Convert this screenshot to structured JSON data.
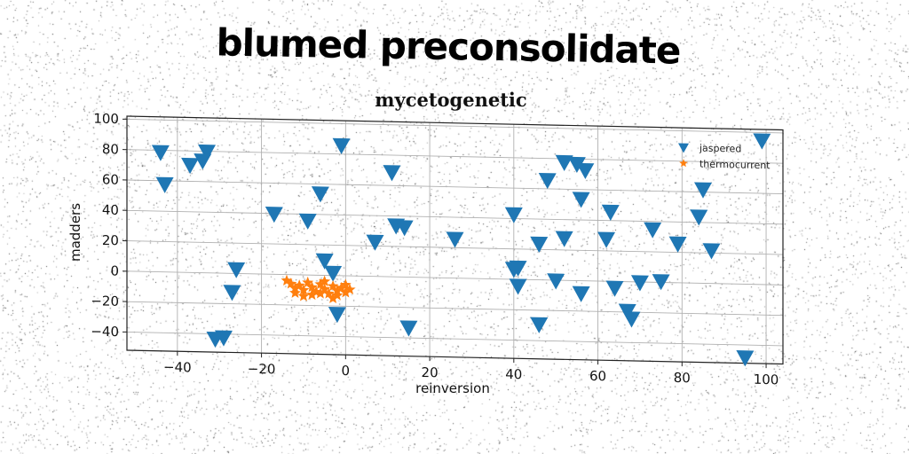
{
  "suptitle": "blumed preconsolidate",
  "chart_data": {
    "type": "scatter",
    "title": "mycetogenetic",
    "xlabel": "reinversion",
    "ylabel": "madders",
    "xlim": [
      -52,
      104
    ],
    "ylim": [
      -52,
      102
    ],
    "xticks": [
      -40,
      -20,
      0,
      20,
      40,
      60,
      80,
      100
    ],
    "yticks": [
      -40,
      -20,
      0,
      20,
      40,
      60,
      80,
      100
    ],
    "xtick_labels": [
      "−40",
      "−20",
      "0",
      "20",
      "40",
      "60",
      "80",
      "100"
    ],
    "ytick_labels": [
      "−40",
      "−20",
      "0",
      "20",
      "40",
      "60",
      "80",
      "100"
    ],
    "grid": true,
    "legend_position": "top-right",
    "series": [
      {
        "name": "jaspered",
        "marker": "triangle-down",
        "color": "#1f77b4",
        "points": [
          [
            -44,
            79
          ],
          [
            -43,
            58
          ],
          [
            -37,
            71
          ],
          [
            -33,
            80
          ],
          [
            -34,
            74
          ],
          [
            -1,
            86
          ],
          [
            11,
            69
          ],
          [
            -17,
            40
          ],
          [
            -9,
            36
          ],
          [
            -6,
            54
          ],
          [
            12,
            34
          ],
          [
            14,
            33
          ],
          [
            7,
            23
          ],
          [
            26,
            26
          ],
          [
            -5,
            10
          ],
          [
            -26,
            3
          ],
          [
            -27,
            -12
          ],
          [
            -3,
            2
          ],
          [
            -29,
            -42
          ],
          [
            -31,
            -43
          ],
          [
            -2,
            -25
          ],
          [
            15,
            -33
          ],
          [
            40,
            43
          ],
          [
            40,
            7
          ],
          [
            41,
            -4
          ],
          [
            41,
            8
          ],
          [
            46,
            24
          ],
          [
            46,
            -29
          ],
          [
            48,
            66
          ],
          [
            52,
            28
          ],
          [
            50,
            0
          ],
          [
            52,
            78
          ],
          [
            55,
            77
          ],
          [
            57,
            73
          ],
          [
            56,
            54
          ],
          [
            56,
            -8
          ],
          [
            62,
            28
          ],
          [
            63,
            46
          ],
          [
            64,
            -4
          ],
          [
            67,
            -19
          ],
          [
            68,
            -24
          ],
          [
            70,
            0
          ],
          [
            73,
            35
          ],
          [
            75,
            1
          ],
          [
            79,
            26
          ],
          [
            84,
            44
          ],
          [
            85,
            62
          ],
          [
            87,
            22
          ],
          [
            99,
            95
          ],
          [
            95,
            -48
          ]
        ]
      },
      {
        "name": "thermocurrent",
        "marker": "star",
        "color": "#ff7f0e",
        "points": [
          [
            -13,
            -6
          ],
          [
            -12,
            -9
          ],
          [
            -11,
            -7
          ],
          [
            -10,
            -10
          ],
          [
            -9,
            -5
          ],
          [
            -8,
            -8
          ],
          [
            -7,
            -11
          ],
          [
            -6,
            -6
          ],
          [
            -5,
            -9
          ],
          [
            -4,
            -12
          ],
          [
            -3,
            -7
          ],
          [
            -2,
            -10
          ],
          [
            -1,
            -8
          ],
          [
            0,
            -11
          ],
          [
            1,
            -9
          ],
          [
            -14,
            -4
          ],
          [
            -8,
            -13
          ],
          [
            -5,
            -4
          ],
          [
            -2,
            -13
          ],
          [
            -10,
            -14
          ],
          [
            -12,
            -12
          ],
          [
            0,
            -6
          ],
          [
            -6,
            -12
          ],
          [
            -3,
            -15
          ]
        ]
      }
    ]
  }
}
